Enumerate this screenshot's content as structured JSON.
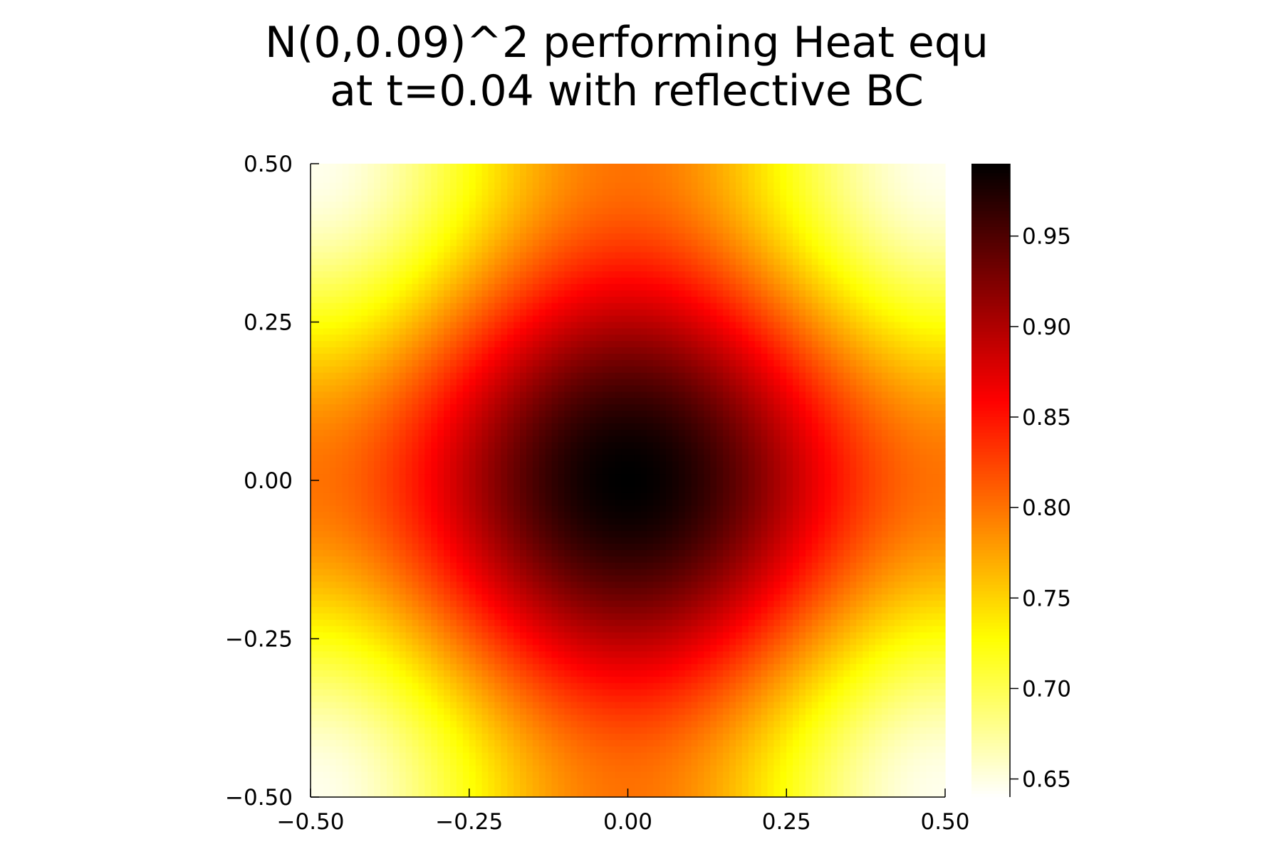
{
  "chart_data": {
    "type": "heatmap",
    "title_lines": [
      "N(0,0.09)^2 performing Heat equ",
      "at t=0.04 with reflective BC"
    ],
    "xlim": [
      -0.5,
      0.5
    ],
    "ylim": [
      -0.5,
      0.5
    ],
    "x_ticks": [
      "−0.50",
      "−0.25",
      "0.00",
      "0.25",
      "0.50"
    ],
    "x_tick_values": [
      -0.5,
      -0.25,
      0.0,
      0.25,
      0.5
    ],
    "y_ticks": [
      "−0.50",
      "−0.25",
      "0.00",
      "0.25",
      "0.50"
    ],
    "y_tick_values": [
      -0.5,
      -0.25,
      0.0,
      0.25,
      0.5
    ],
    "colorbar": {
      "colormap": "hot (white-yellow-orange-red-black, high values dark)",
      "range": [
        0.64,
        0.99
      ],
      "ticks": [
        "0.65",
        "0.70",
        "0.75",
        "0.80",
        "0.85",
        "0.90",
        "0.95"
      ],
      "tick_values": [
        0.65,
        0.7,
        0.75,
        0.8,
        0.85,
        0.9,
        0.95
      ]
    },
    "field": {
      "description_values": {
        "center_value": 0.99,
        "corner_value": 0.64,
        "edge_midpoint_value": 0.8
      }
    },
    "grid": false
  },
  "colors": {
    "cmap_stops": [
      "#ffffff",
      "#ffff00",
      "#ff8000",
      "#ff0000",
      "#800000",
      "#000000"
    ]
  }
}
